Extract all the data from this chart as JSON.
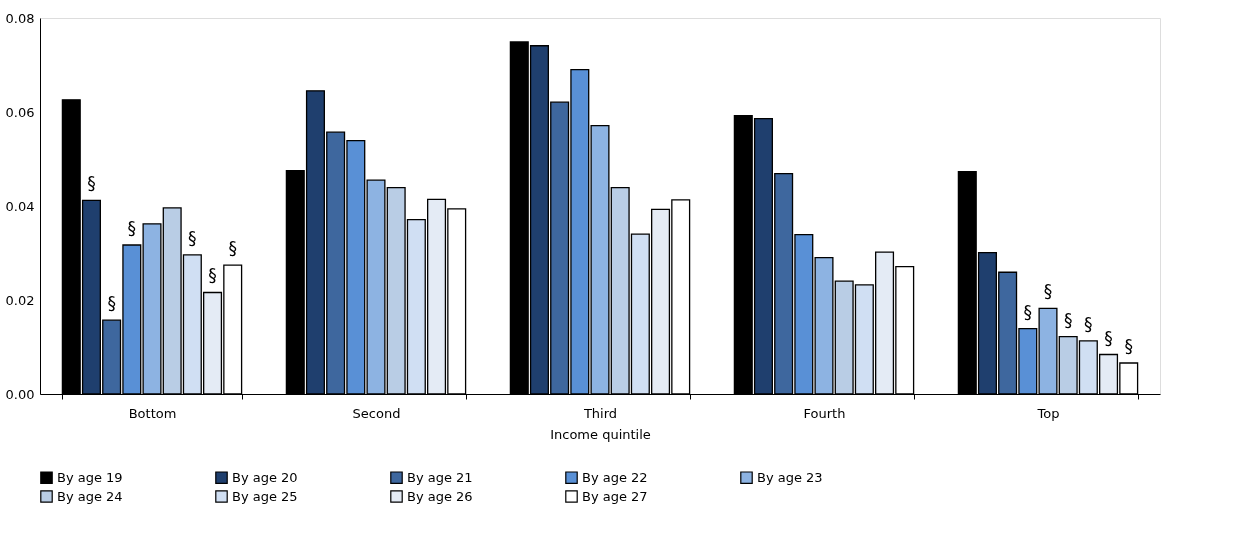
{
  "chart_data": {
    "type": "bar",
    "xlabel": "Income quintile",
    "categories": [
      "Bottom",
      "Second",
      "Third",
      "Fourth",
      "Top"
    ],
    "series": [
      {
        "name": "By age 19",
        "color": "#000000",
        "values": [
          0.0626,
          0.0475,
          0.0749,
          0.0592,
          0.0473
        ],
        "value_labels": [
          null,
          null,
          null,
          null,
          null
        ]
      },
      {
        "name": "By age 20",
        "color": "#1f3f6e",
        "values": [
          0.0412,
          0.0645,
          0.0741,
          0.0586,
          0.0301
        ],
        "value_labels": [
          "§",
          null,
          null,
          null,
          null
        ]
      },
      {
        "name": "By age 21",
        "color": "#3e679e",
        "values": [
          0.0157,
          0.0557,
          0.0621,
          0.0469,
          0.0259
        ],
        "value_labels": [
          "§",
          null,
          null,
          null,
          null
        ]
      },
      {
        "name": "By age 22",
        "color": "#5990d6",
        "values": [
          0.0317,
          0.0539,
          0.069,
          0.0339,
          0.0139
        ],
        "value_labels": [
          "§",
          null,
          null,
          null,
          "§"
        ]
      },
      {
        "name": "By age 23",
        "color": "#8db3e2",
        "values": [
          0.0362,
          0.0455,
          0.0571,
          0.029,
          0.0182
        ],
        "value_labels": [
          null,
          null,
          null,
          null,
          "§"
        ]
      },
      {
        "name": "By age 24",
        "color": "#b9cde5",
        "values": [
          0.0396,
          0.0439,
          0.0439,
          0.024,
          0.0122
        ],
        "value_labels": [
          null,
          null,
          null,
          null,
          "§"
        ]
      },
      {
        "name": "By age 25",
        "color": "#d0dff3",
        "values": [
          0.0296,
          0.0371,
          0.034,
          0.0232,
          0.0113
        ],
        "value_labels": [
          "§",
          null,
          null,
          null,
          "§"
        ]
      },
      {
        "name": "By age 26",
        "color": "#e4ebf5",
        "values": [
          0.0216,
          0.0414,
          0.0393,
          0.0302,
          0.0084
        ],
        "value_labels": [
          "§",
          null,
          null,
          null,
          "§"
        ]
      },
      {
        "name": "By age 27",
        "color": "#ffffff",
        "values": [
          0.0274,
          0.0394,
          0.0413,
          0.0271,
          0.0066
        ],
        "value_labels": [
          "§",
          null,
          null,
          null,
          "§"
        ]
      }
    ],
    "ylim": [
      0,
      0.08
    ],
    "yticks": [
      {
        "value": 0,
        "label": "0.00"
      },
      {
        "value": 0.02,
        "label": "0.02"
      },
      {
        "value": 0.04,
        "label": "0.04"
      },
      {
        "value": 0.06,
        "label": "0.06"
      },
      {
        "value": 0.08,
        "label": "0.08"
      }
    ],
    "grid": false,
    "legend": "bottom"
  }
}
